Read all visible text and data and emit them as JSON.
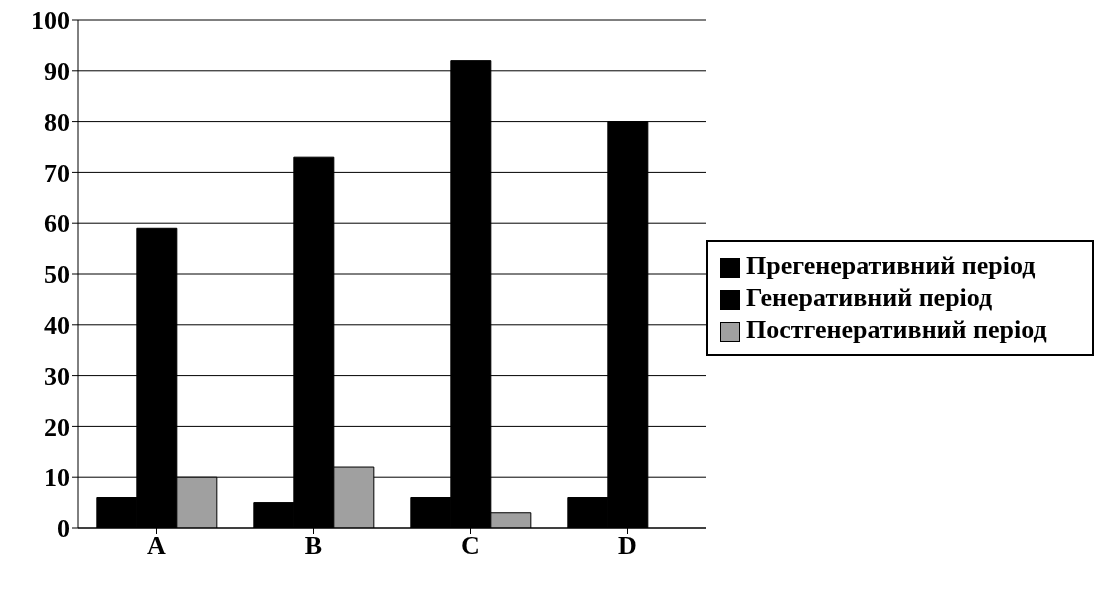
{
  "chart_data": {
    "type": "bar",
    "categories": [
      "A",
      "B",
      "C",
      "D"
    ],
    "series": [
      {
        "name": "Прегенеративний період",
        "color": "#000000",
        "values": [
          6,
          5,
          6,
          6
        ]
      },
      {
        "name": "Генеративний період",
        "color": "#000000",
        "values": [
          59,
          73,
          92,
          80
        ]
      },
      {
        "name": "Постгенеративний період",
        "color": "#a0a0a0",
        "values": [
          10,
          12,
          3,
          0
        ]
      }
    ],
    "ylim": [
      0,
      100
    ],
    "yticks": [
      0,
      10,
      20,
      30,
      40,
      50,
      60,
      70,
      80,
      90,
      100
    ],
    "grid": "y",
    "legend": "right"
  }
}
